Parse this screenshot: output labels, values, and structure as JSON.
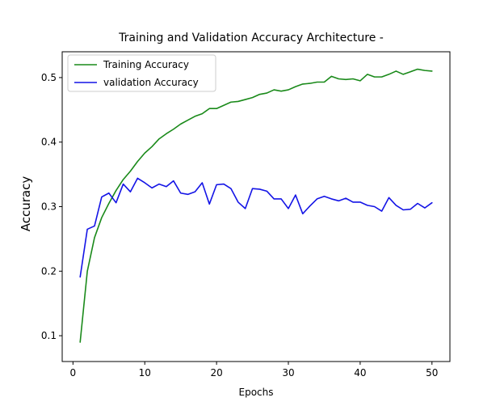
{
  "chart_data": {
    "type": "line",
    "title": "Training and Validation Accuracy Architecture -",
    "xlabel": "Epochs",
    "ylabel": "Accuracy",
    "xlim": [
      -1.5,
      52.5
    ],
    "ylim": [
      0.06,
      0.54
    ],
    "xticks": [
      0,
      10,
      20,
      30,
      40,
      50
    ],
    "yticks": [
      0.1,
      0.2,
      0.3,
      0.4,
      0.5
    ],
    "ytick_labels": [
      "0.1",
      "0.2",
      "0.3",
      "0.4",
      "0.5"
    ],
    "grid": false,
    "legend_position": "top-left",
    "x": [
      1,
      2,
      3,
      4,
      5,
      6,
      7,
      8,
      9,
      10,
      11,
      12,
      13,
      14,
      15,
      16,
      17,
      18,
      19,
      20,
      21,
      22,
      23,
      24,
      25,
      26,
      27,
      28,
      29,
      30,
      31,
      32,
      33,
      34,
      35,
      36,
      37,
      38,
      39,
      40,
      41,
      42,
      43,
      44,
      45,
      46,
      47,
      48,
      49,
      50
    ],
    "series": [
      {
        "name": "Training Accuracy",
        "color": "#1a8a1a",
        "values": [
          0.09,
          0.2,
          0.252,
          0.283,
          0.305,
          0.325,
          0.342,
          0.355,
          0.37,
          0.383,
          0.393,
          0.405,
          0.413,
          0.42,
          0.428,
          0.434,
          0.44,
          0.444,
          0.452,
          0.452,
          0.457,
          0.462,
          0.463,
          0.466,
          0.469,
          0.474,
          0.476,
          0.481,
          0.479,
          0.481,
          0.486,
          0.49,
          0.491,
          0.493,
          0.493,
          0.502,
          0.498,
          0.497,
          0.498,
          0.495,
          0.505,
          0.501,
          0.501,
          0.505,
          0.51,
          0.505,
          0.509,
          0.513,
          0.511,
          0.51
        ]
      },
      {
        "name": "validation Accuracy",
        "color": "#1414e6",
        "values": [
          0.191,
          0.265,
          0.27,
          0.315,
          0.321,
          0.306,
          0.335,
          0.323,
          0.344,
          0.337,
          0.329,
          0.335,
          0.331,
          0.34,
          0.321,
          0.319,
          0.323,
          0.337,
          0.304,
          0.334,
          0.335,
          0.328,
          0.307,
          0.297,
          0.328,
          0.327,
          0.324,
          0.312,
          0.312,
          0.297,
          0.318,
          0.289,
          0.301,
          0.312,
          0.316,
          0.312,
          0.309,
          0.313,
          0.307,
          0.307,
          0.302,
          0.3,
          0.293,
          0.314,
          0.302,
          0.295,
          0.296,
          0.305,
          0.298,
          0.306
        ]
      }
    ]
  }
}
